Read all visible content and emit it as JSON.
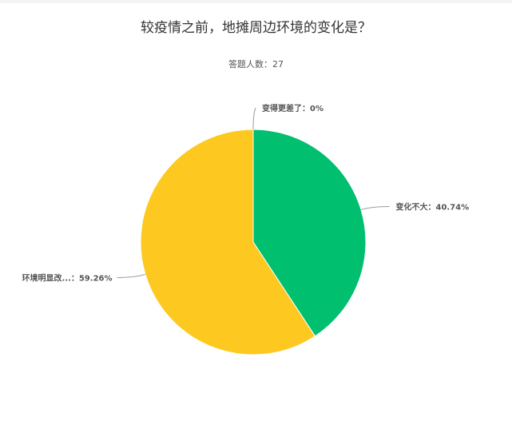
{
  "chart_data": {
    "type": "pie",
    "title": "较疫情之前，地摊周边环境的变化是？",
    "subtitle": "答题人数：27",
    "slices": [
      {
        "label": "变化不大",
        "value": 40.74,
        "display": "变化不大：40.74%",
        "color": "#00BF6F"
      },
      {
        "label": "环境明显改...",
        "value": 59.26,
        "display": "环境明显改...：59.26%",
        "color": "#FDC921"
      },
      {
        "label": "变得更差了",
        "value": 0,
        "display": "变得更差了：0%",
        "color": "#F5655E"
      }
    ]
  }
}
